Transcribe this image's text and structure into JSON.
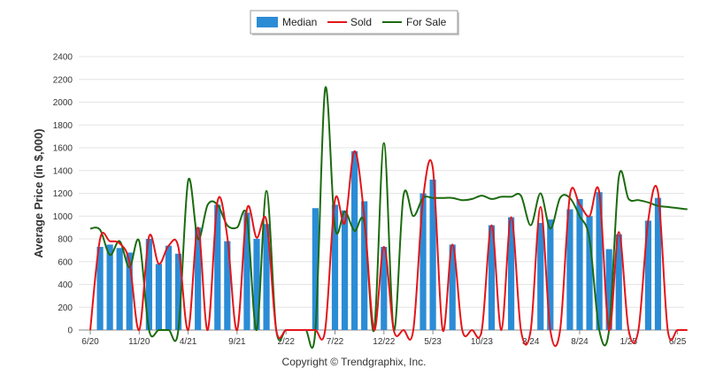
{
  "colors": {
    "median": "#2b8cd6",
    "sold": "#e3151a",
    "for_sale": "#1b6b0f",
    "grid": "#e4e4e4",
    "axis": "#888888"
  },
  "legend": {
    "median": "Median",
    "sold": "Sold",
    "for_sale": "For Sale"
  },
  "credit": "Copyright © Trendgraphix, Inc.",
  "chart_data": {
    "type": "bar",
    "ylabel": "Average Price (in $,000)",
    "xlabel": "",
    "ylim": [
      0,
      2400
    ],
    "yticks": [
      0,
      200,
      400,
      600,
      800,
      1000,
      1200,
      1400,
      1600,
      1800,
      2000,
      2200,
      2400
    ],
    "grid": true,
    "legend_position": "top-center",
    "x_tick_labels": [
      {
        "month": 0,
        "label": "6/20"
      },
      {
        "month": 5,
        "label": "11/20"
      },
      {
        "month": 10,
        "label": "4/21"
      },
      {
        "month": 15,
        "label": "9/21"
      },
      {
        "month": 20,
        "label": "2/22"
      },
      {
        "month": 25,
        "label": "7/22"
      },
      {
        "month": 30,
        "label": "12/22"
      },
      {
        "month": 35,
        "label": "5/23"
      },
      {
        "month": 40,
        "label": "10/23"
      },
      {
        "month": 45,
        "label": "3/24"
      },
      {
        "month": 50,
        "label": "8/24"
      },
      {
        "month": 55,
        "label": "1/25"
      },
      {
        "month": 60,
        "label": "6/25"
      }
    ],
    "series": [
      {
        "key": "median",
        "chart_type": "bar",
        "values": [
          null,
          730,
          750,
          720,
          680,
          null,
          800,
          580,
          740,
          670,
          null,
          900,
          null,
          1100,
          780,
          null,
          1030,
          800,
          930,
          null,
          null,
          null,
          null,
          1070,
          null,
          1100,
          1050,
          1570,
          1130,
          null,
          730,
          null,
          null,
          null,
          1200,
          1320,
          null,
          750,
          null,
          null,
          null,
          920,
          null,
          990,
          null,
          null,
          940,
          970,
          null,
          1060,
          1150,
          1000,
          1210,
          710,
          840,
          null,
          null,
          960,
          1160,
          null,
          null,
          null
        ]
      },
      {
        "key": "sold",
        "chart_type": "line",
        "values": [
          0,
          800,
          780,
          760,
          600,
          0,
          820,
          580,
          740,
          730,
          0,
          900,
          0,
          1130,
          820,
          0,
          1060,
          810,
          960,
          0,
          0,
          0,
          0,
          0,
          0,
          1140,
          940,
          1570,
          990,
          0,
          730,
          0,
          0,
          0,
          1150,
          1420,
          0,
          750,
          0,
          0,
          0,
          920,
          0,
          990,
          0,
          0,
          1080,
          0,
          0,
          1180,
          1100,
          1000,
          1210,
          0,
          860,
          0,
          0,
          960,
          1210,
          0,
          0,
          0
        ]
      },
      {
        "key": "for_sale",
        "chart_type": "line",
        "values": [
          890,
          880,
          660,
          780,
          550,
          780,
          0,
          0,
          0,
          0,
          1310,
          800,
          1100,
          1100,
          920,
          900,
          1000,
          0,
          1220,
          0,
          0,
          0,
          0,
          0,
          2120,
          900,
          1040,
          870,
          940,
          0,
          1640,
          0,
          1180,
          1000,
          1160,
          1160,
          1160,
          1160,
          1140,
          1150,
          1180,
          1150,
          1170,
          1170,
          1180,
          920,
          1200,
          890,
          1160,
          1160,
          1000,
          800,
          0,
          0,
          1340,
          1150,
          1140,
          1120,
          1090,
          1080,
          1070,
          1060
        ]
      }
    ]
  }
}
